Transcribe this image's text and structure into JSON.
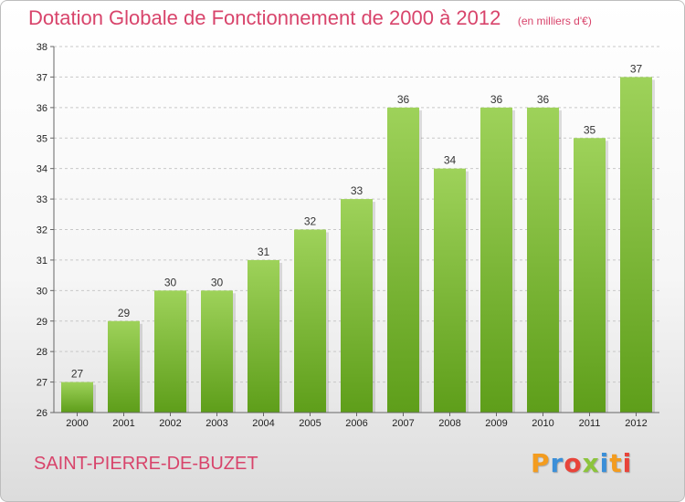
{
  "header": {
    "title": "Dotation Globale de Fonctionnement de 2000 à 2012",
    "subtitle": "(en milliers d'€)"
  },
  "footer": {
    "commune": "SAINT-PIERRE-DE-BUZET",
    "logo_text": "Proxiti",
    "logo_colors": [
      "#f39c1f",
      "#3b8fd8",
      "#e8443a",
      "#8cc43c",
      "#3b8fd8",
      "#f39c1f",
      "#e8443a"
    ]
  },
  "chart_data": {
    "type": "bar",
    "categories": [
      "2000",
      "2001",
      "2002",
      "2003",
      "2004",
      "2005",
      "2006",
      "2007",
      "2008",
      "2009",
      "2010",
      "2011",
      "2012"
    ],
    "values": [
      27,
      29,
      30,
      30,
      31,
      32,
      33,
      36,
      34,
      36,
      36,
      35,
      37
    ],
    "ylim": [
      26,
      38
    ],
    "yticks": [
      26,
      27,
      28,
      29,
      30,
      31,
      32,
      33,
      34,
      35,
      36,
      37,
      38
    ],
    "grid": "horizontal dashed",
    "bar_color_top": "#9ed25a",
    "bar_color_bottom": "#5e9e1a"
  }
}
